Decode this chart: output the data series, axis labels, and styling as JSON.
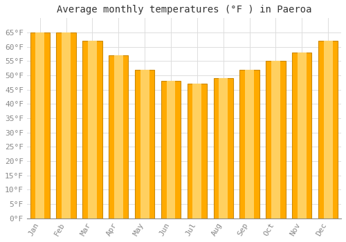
{
  "title": "Average monthly temperatures (°F ) in Paeroa",
  "months": [
    "Jan",
    "Feb",
    "Mar",
    "Apr",
    "May",
    "Jun",
    "Jul",
    "Aug",
    "Sep",
    "Oct",
    "Nov",
    "Dec"
  ],
  "values": [
    65,
    65,
    62,
    57,
    52,
    48,
    47,
    49,
    52,
    55,
    58,
    62
  ],
  "bar_color": "#FFAA00",
  "bar_edge_color": "#CC8800",
  "background_color": "#ffffff",
  "plot_bg_color": "#ffffff",
  "grid_color": "#dddddd",
  "ylim": [
    0,
    70
  ],
  "yticks": [
    0,
    5,
    10,
    15,
    20,
    25,
    30,
    35,
    40,
    45,
    50,
    55,
    60,
    65
  ],
  "ylabel_suffix": "°F",
  "title_fontsize": 10,
  "tick_fontsize": 8,
  "font_family": "monospace"
}
